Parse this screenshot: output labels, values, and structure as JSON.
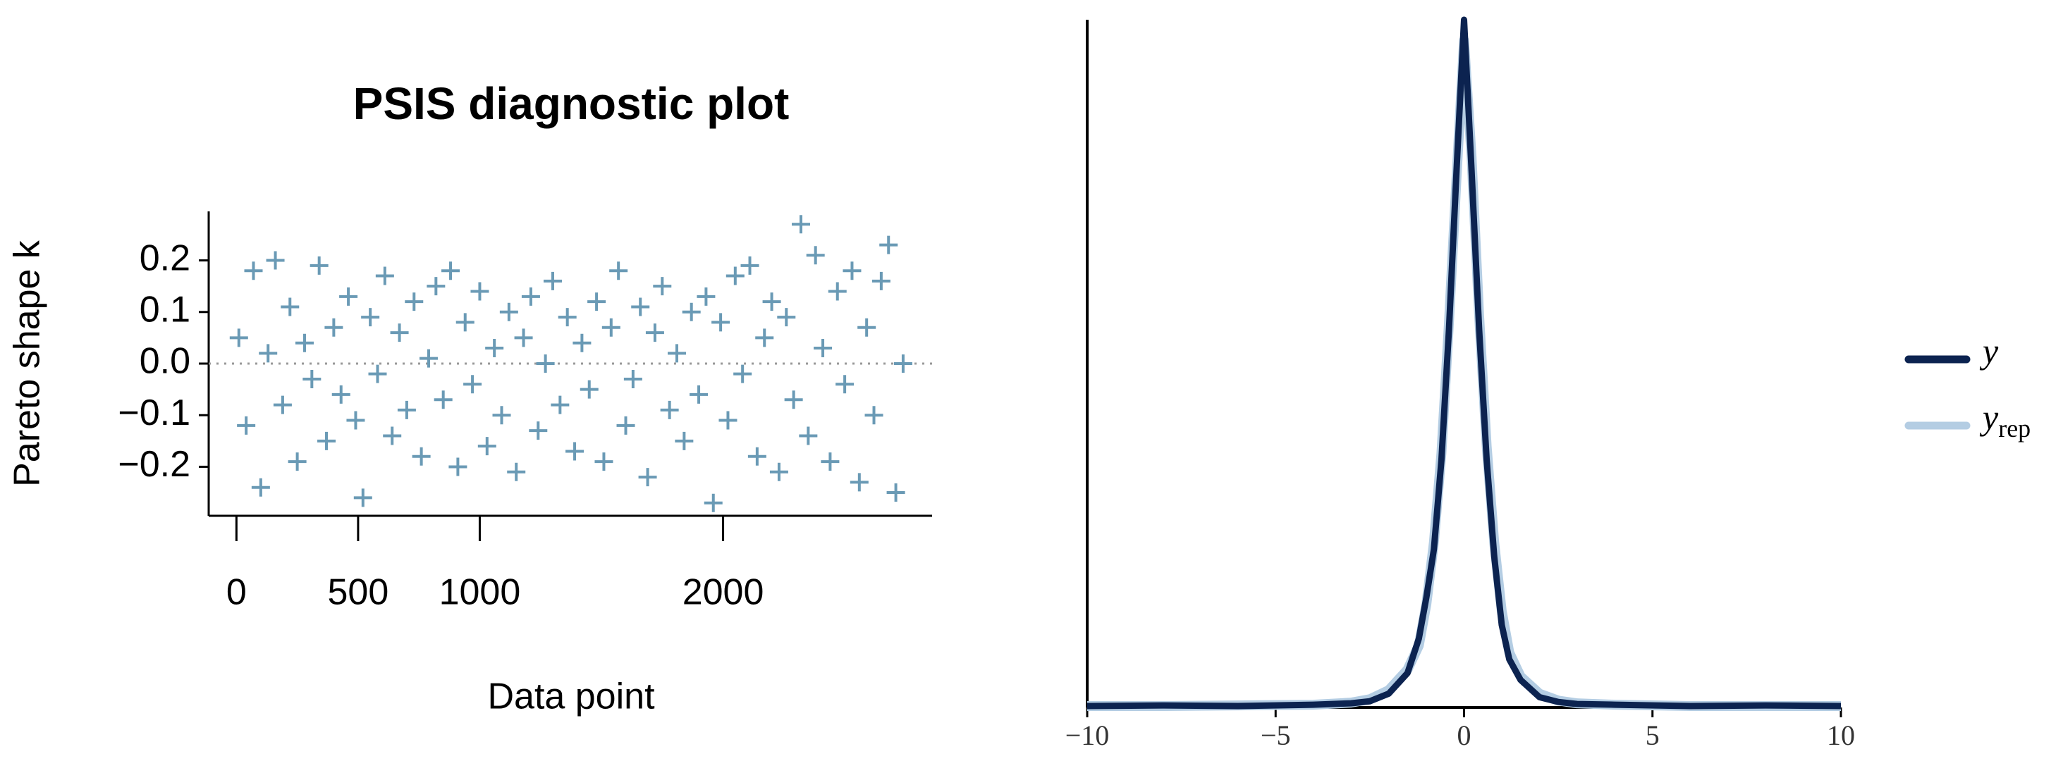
{
  "chart_data": [
    {
      "type": "scatter",
      "title": "PSIS diagnostic plot",
      "x_label": "Data point",
      "y_label": "Pareto shape k",
      "color": "#6a9ab5",
      "marker": "+",
      "hline": 0,
      "xlim": [
        -114,
        2859
      ],
      "ylim": [
        -0.295,
        0.295
      ],
      "xticks": [
        0,
        500,
        1000,
        2000
      ],
      "yticks": [
        {
          "value": -0.2,
          "label": "−0.2"
        },
        {
          "value": -0.1,
          "label": "−0.1"
        },
        {
          "value": 0,
          "label": "0.0"
        },
        {
          "value": 0.1,
          "label": "0.1"
        },
        {
          "value": 0.2,
          "label": "0.2"
        }
      ],
      "x": [
        10,
        40,
        70,
        100,
        130,
        160,
        190,
        220,
        250,
        280,
        310,
        340,
        370,
        400,
        430,
        460,
        490,
        520,
        550,
        580,
        610,
        640,
        670,
        700,
        730,
        760,
        790,
        820,
        850,
        880,
        910,
        940,
        970,
        1000,
        1030,
        1060,
        1090,
        1120,
        1150,
        1180,
        1210,
        1240,
        1270,
        1300,
        1330,
        1360,
        1390,
        1420,
        1450,
        1480,
        1510,
        1540,
        1570,
        1600,
        1630,
        1660,
        1690,
        1720,
        1750,
        1780,
        1810,
        1840,
        1870,
        1900,
        1930,
        1960,
        1990,
        2020,
        2050,
        2080,
        2110,
        2140,
        2170,
        2200,
        2230,
        2260,
        2290,
        2320,
        2350,
        2380,
        2410,
        2440,
        2470,
        2500,
        2530,
        2560,
        2590,
        2620,
        2650,
        2680,
        2710,
        2740
      ],
      "values": [
        0.05,
        -0.12,
        0.18,
        -0.24,
        0.02,
        0.2,
        -0.08,
        0.11,
        -0.19,
        0.04,
        -0.03,
        0.19,
        -0.15,
        0.07,
        -0.06,
        0.13,
        -0.11,
        -0.26,
        0.09,
        -0.02,
        0.17,
        -0.14,
        0.06,
        -0.09,
        0.12,
        -0.18,
        0.01,
        0.15,
        -0.07,
        0.18,
        -0.2,
        0.08,
        -0.04,
        0.14,
        -0.16,
        0.03,
        -0.1,
        0.1,
        -0.21,
        0.05,
        0.13,
        -0.13,
        0.0,
        0.16,
        -0.08,
        0.09,
        -0.17,
        0.04,
        -0.05,
        0.12,
        -0.19,
        0.07,
        0.18,
        -0.12,
        -0.03,
        0.11,
        -0.22,
        0.06,
        0.15,
        -0.09,
        0.02,
        -0.15,
        0.1,
        -0.06,
        0.13,
        -0.27,
        0.08,
        -0.11,
        0.17,
        -0.02,
        0.19,
        -0.18,
        0.05,
        0.12,
        -0.21,
        0.09,
        -0.07,
        0.27,
        -0.14,
        0.21,
        0.03,
        -0.19,
        0.14,
        -0.04,
        0.18,
        -0.23,
        0.07,
        -0.1,
        0.16,
        0.23,
        -0.25,
        0.0
      ]
    },
    {
      "type": "line",
      "xlim": [
        -10,
        10
      ],
      "ylim": [
        0,
        1.0
      ],
      "xticks": [
        {
          "value": -10,
          "label": "−10"
        },
        {
          "value": -5,
          "label": "−5"
        },
        0,
        5,
        10
      ],
      "x": [
        -10,
        -8,
        -6,
        -4,
        -3,
        -2.5,
        -2,
        -1.5,
        -1.2,
        -1,
        -0.8,
        -0.6,
        -0.4,
        -0.2,
        0,
        0.2,
        0.4,
        0.6,
        0.8,
        1,
        1.2,
        1.5,
        2,
        2.5,
        3,
        4,
        6,
        8,
        10
      ],
      "series": [
        {
          "name": "y",
          "color": "#0c2350",
          "values": [
            0.002,
            0.003,
            0.002,
            0.004,
            0.006,
            0.009,
            0.02,
            0.05,
            0.1,
            0.16,
            0.23,
            0.36,
            0.55,
            0.78,
            1.0,
            0.78,
            0.55,
            0.36,
            0.22,
            0.12,
            0.07,
            0.04,
            0.015,
            0.008,
            0.005,
            0.004,
            0.002,
            0.003,
            0.002
          ]
        },
        {
          "name": "y",
          "subscript": "rep",
          "color": "#b4cde3",
          "values": [
            0.002,
            0.002,
            0.003,
            0.004,
            0.007,
            0.012,
            0.025,
            0.055,
            0.09,
            0.15,
            0.24,
            0.37,
            0.56,
            0.77,
            0.97,
            0.8,
            0.57,
            0.38,
            0.24,
            0.14,
            0.08,
            0.045,
            0.02,
            0.01,
            0.006,
            0.004,
            0.002,
            0.002,
            0.002
          ]
        }
      ]
    }
  ]
}
